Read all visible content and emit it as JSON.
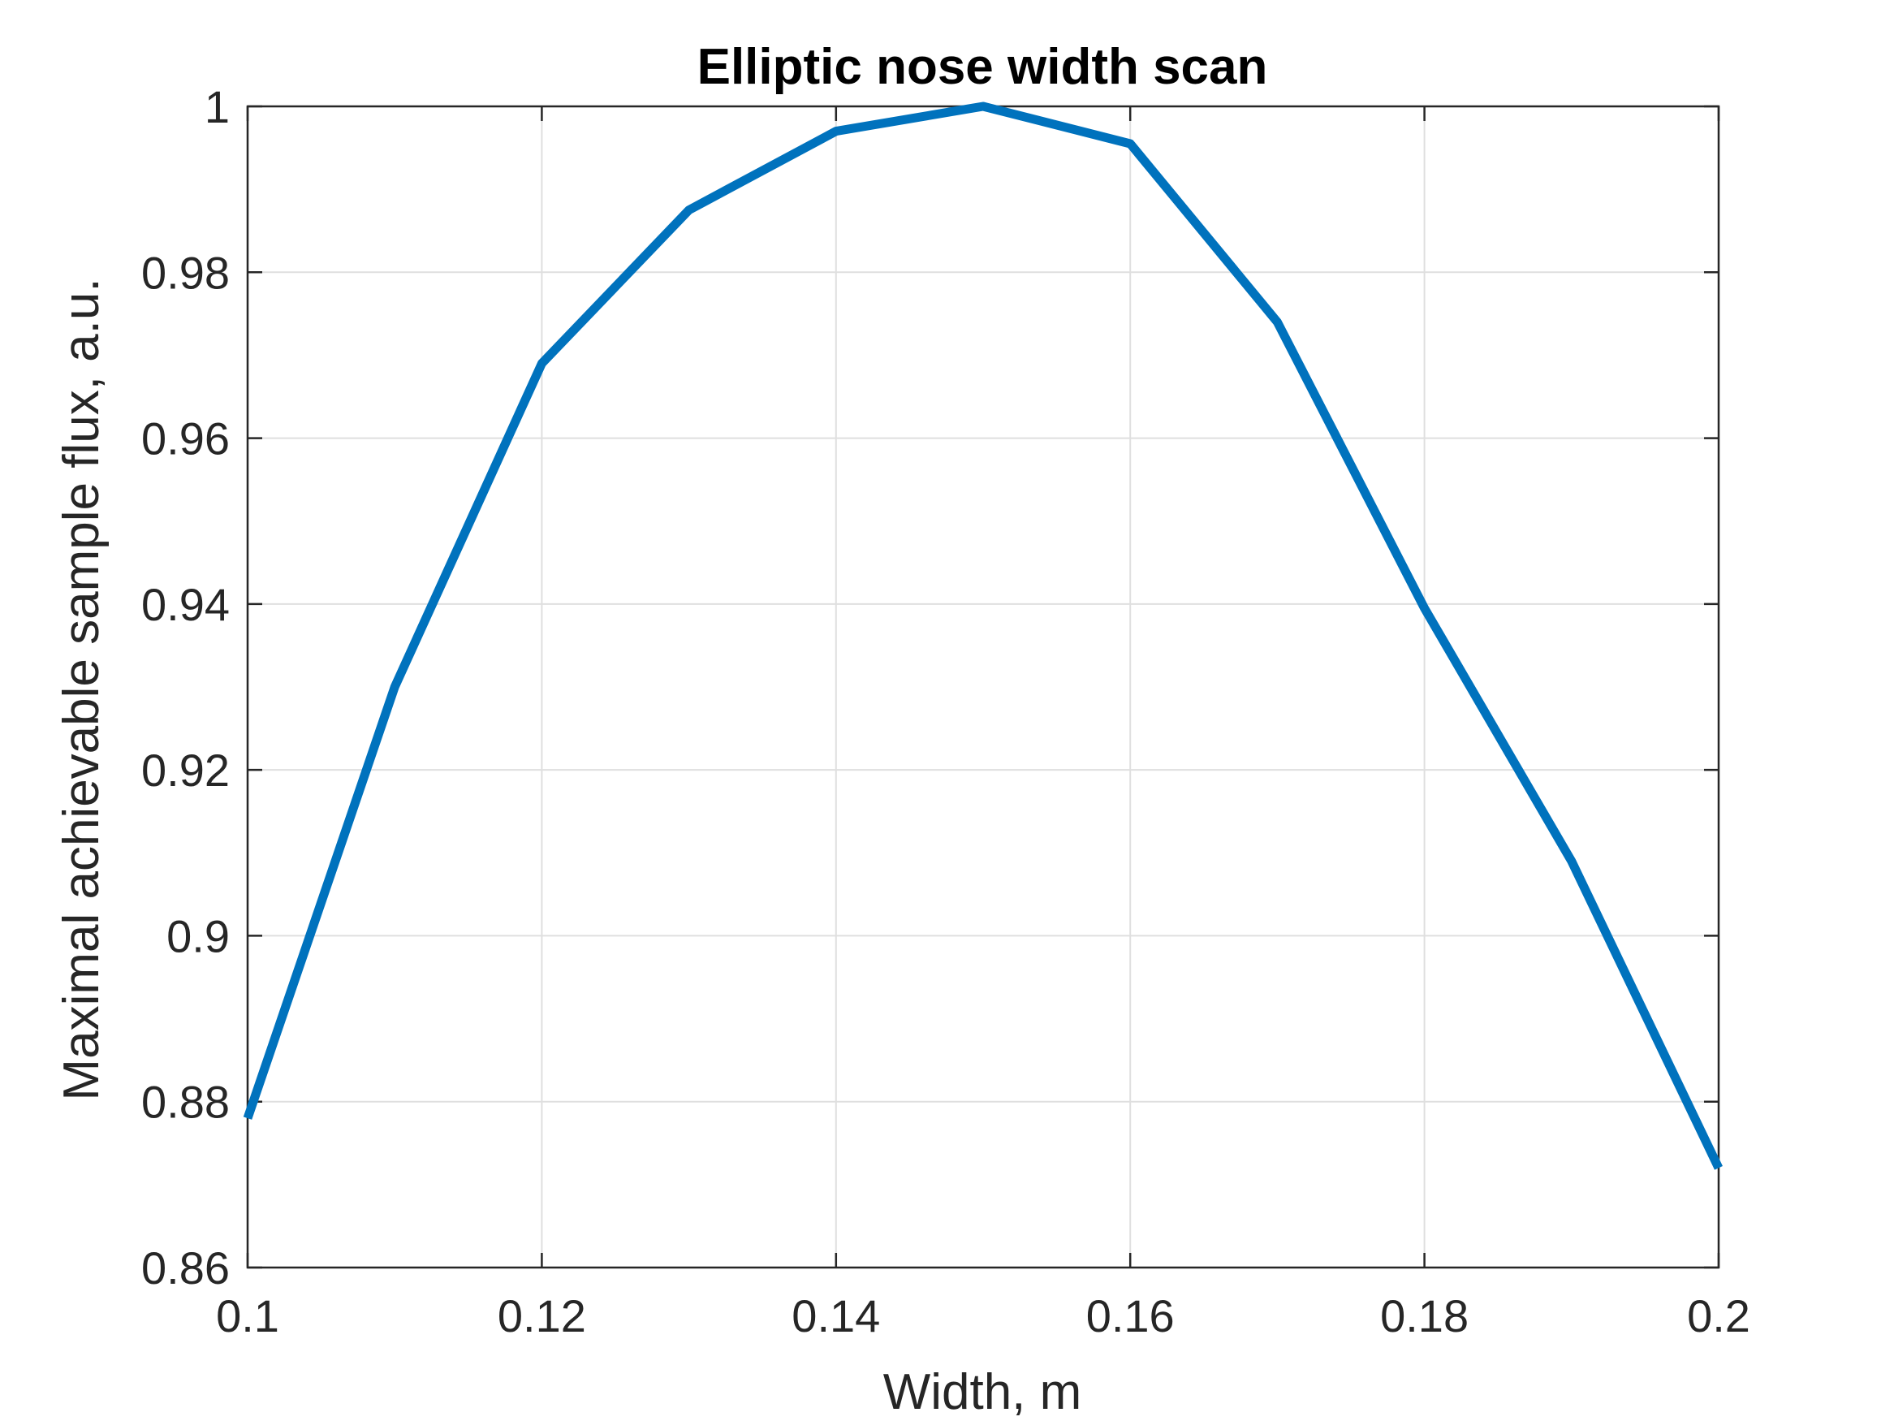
{
  "chart_data": {
    "type": "line",
    "title": "Elliptic nose width scan",
    "xlabel": "Width, m",
    "ylabel": "Maximal achievable sample flux, a.u.",
    "xlim": [
      0.1,
      0.2
    ],
    "ylim": [
      0.86,
      1.0
    ],
    "xticks": [
      0.1,
      0.12,
      0.14,
      0.16,
      0.18,
      0.2
    ],
    "xtick_labels": [
      "0.1",
      "0.12",
      "0.14",
      "0.16",
      "0.18",
      "0.2"
    ],
    "yticks": [
      0.86,
      0.88,
      0.9,
      0.92,
      0.94,
      0.96,
      0.98,
      1.0
    ],
    "ytick_labels": [
      "0.86",
      "0.88",
      "0.9",
      "0.92",
      "0.94",
      "0.96",
      "0.98",
      "1"
    ],
    "grid": true,
    "legend": "none",
    "series": [
      {
        "color": "#0072bd",
        "x": [
          0.1,
          0.11,
          0.12,
          0.13,
          0.14,
          0.15,
          0.16,
          0.17,
          0.18,
          0.19,
          0.2
        ],
        "y": [
          0.878,
          0.93,
          0.969,
          0.9875,
          0.997,
          1.0,
          0.9955,
          0.974,
          0.9395,
          0.909,
          0.872
        ]
      }
    ]
  }
}
